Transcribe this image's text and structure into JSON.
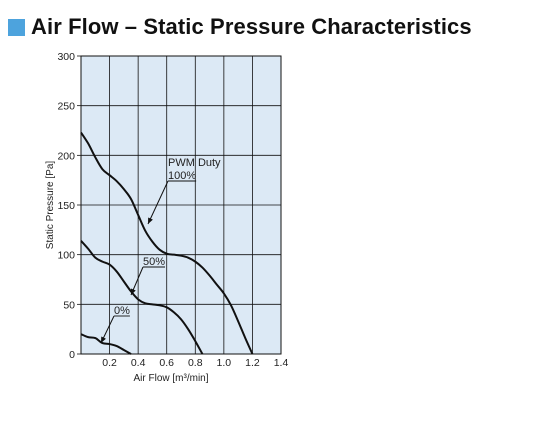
{
  "page": {
    "title": "Air Flow – Static Pressure Characteristics",
    "accent_color": "#4da3dd"
  },
  "chart_data": {
    "type": "line",
    "title": "Air Flow – Static Pressure Characteristics",
    "xlabel": "Air Flow [m³/min]",
    "ylabel": "Static Pressure [Pa]",
    "xlim": [
      0,
      1.4
    ],
    "ylim": [
      0,
      300
    ],
    "x_ticks": [
      "0.2",
      "0.4",
      "0.6",
      "0.8",
      "1.0",
      "1.2",
      "1.4"
    ],
    "y_ticks": [
      "0",
      "50",
      "100",
      "150",
      "200",
      "250",
      "300"
    ],
    "grid": true,
    "legend_title": "PWM Duty",
    "line_color": "#111111",
    "grid_color": "#111111",
    "plot_background": "#dce9f5",
    "series": [
      {
        "name": "100%",
        "x": [
          0.0,
          0.05,
          0.1,
          0.15,
          0.2,
          0.25,
          0.3,
          0.35,
          0.4,
          0.45,
          0.5,
          0.55,
          0.6,
          0.65,
          0.7,
          0.75,
          0.8,
          0.85,
          0.9,
          0.95,
          1.0,
          1.05,
          1.1,
          1.15,
          1.2
        ],
        "y": [
          223,
          212,
          198,
          186,
          180,
          174,
          166,
          156,
          140,
          124,
          113,
          105,
          101,
          100,
          99,
          97,
          93,
          87,
          79,
          70,
          61,
          49,
          33,
          16,
          0
        ]
      },
      {
        "name": "50%",
        "x": [
          0.0,
          0.05,
          0.1,
          0.15,
          0.2,
          0.25,
          0.3,
          0.35,
          0.4,
          0.45,
          0.5,
          0.55,
          0.6,
          0.65,
          0.7,
          0.75,
          0.8,
          0.85
        ],
        "y": [
          114,
          106,
          97,
          93,
          90,
          83,
          73,
          63,
          55,
          51,
          50,
          49,
          47,
          42,
          35,
          25,
          13,
          0
        ]
      },
      {
        "name": "0%",
        "x": [
          0.0,
          0.05,
          0.1,
          0.15,
          0.2,
          0.25,
          0.3,
          0.35
        ],
        "y": [
          20,
          17,
          16,
          11,
          10,
          8,
          4,
          0
        ]
      }
    ]
  }
}
